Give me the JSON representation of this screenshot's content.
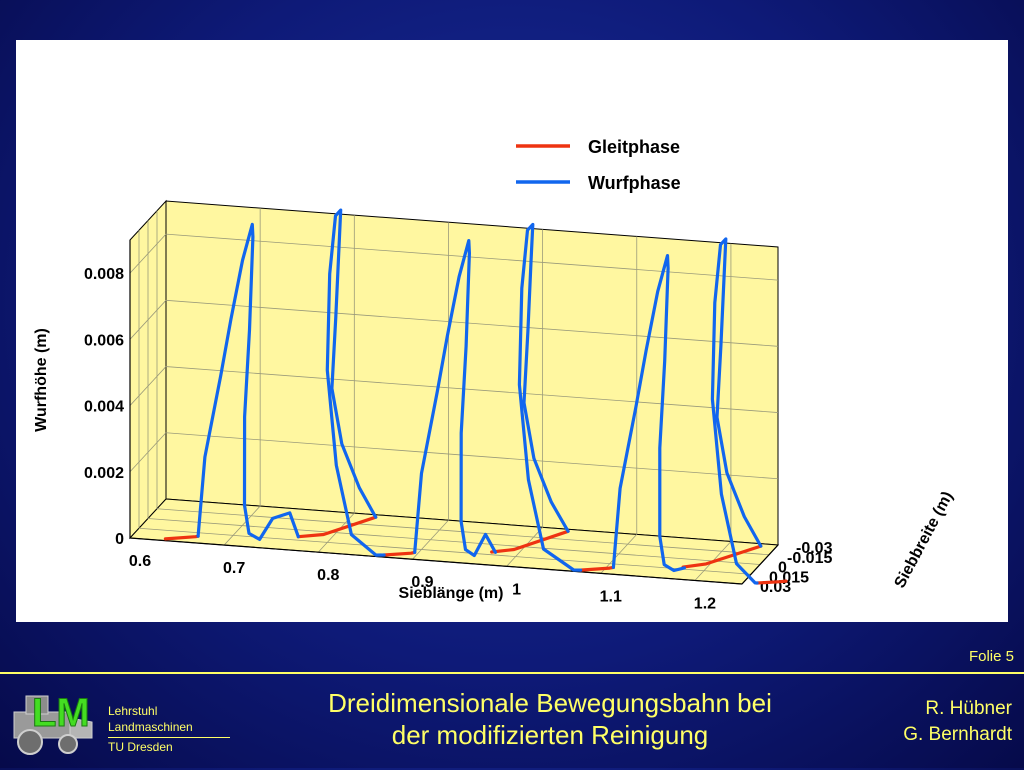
{
  "slide": {
    "number": "Folie 5",
    "title_line1": "Dreidimensionale Bewegungsbahn bei",
    "title_line2": "der modifizierten Reinigung",
    "authors": [
      "R. Hübner",
      "G. Bernhardt"
    ],
    "institution": [
      "Lehrstuhl",
      "Landmaschinen",
      "TU Dresden"
    ],
    "logo_letters": "LM",
    "colors": {
      "background": "#0e1a78",
      "text": "#ffff66",
      "pane": "#fff7a0"
    }
  },
  "chart_data": {
    "type": "line",
    "projection": "3d",
    "xlabel": "Sieblänge (m)",
    "ylabel": "Siebbreite (m)",
    "zlabel": "Wurfhöhe (m)",
    "xlim": [
      0.6,
      1.25
    ],
    "ylim": [
      -0.03,
      0.03
    ],
    "zlim": [
      0,
      0.009
    ],
    "x_ticks": [
      "0.6",
      "0.7",
      "0.8",
      "0.9",
      "1",
      "1.1",
      "1.2"
    ],
    "y_ticks": [
      "-0.03",
      "-0.015",
      "0",
      "0.015",
      "0.03"
    ],
    "z_ticks": [
      "0",
      "0.002",
      "0.004",
      "0.006",
      "0.008"
    ],
    "grid": true,
    "legend_position": "top-right",
    "colors": {
      "Gleitphase": "#ee3311",
      "Wurfphase": "#1166ee"
    },
    "series": [
      {
        "name": "Gleitphase",
        "segments": [
          [
            [
              0.636,
              0.0275,
              0
            ],
            [
              0.664,
              0.021,
              0
            ],
            [
              0.666,
              0.02,
              0
            ]
          ],
          [
            [
              0.766,
              0.01,
              0
            ],
            [
              0.789,
              0.004,
              0
            ],
            [
              0.825,
              -0.0265,
              0
            ]
          ],
          [
            [
              0.868,
              0.027,
              0
            ],
            [
              0.893,
              0.0215,
              0
            ],
            [
              0.896,
              0.02,
              0
            ]
          ],
          [
            [
              0.972,
              0.011,
              0
            ],
            [
              0.992,
              0.005,
              0
            ],
            [
              1.029,
              -0.027,
              0
            ]
          ],
          [
            [
              1.077,
              0.0275,
              0
            ],
            [
              1.104,
              0.0215,
              0
            ],
            [
              1.107,
              0.02,
              0
            ]
          ],
          [
            [
              1.176,
              0.012,
              0
            ],
            [
              1.196,
              0.005,
              0
            ],
            [
              1.234,
              -0.0265,
              0
            ]
          ],
          [
            [
              1.264,
              0.027,
              0
            ],
            [
              1.286,
              0.0225,
              0
            ],
            [
              1.291,
              0.021,
              0
            ]
          ]
        ]
      },
      {
        "name": "Wurfphase",
        "segments": [
          [
            [
              0.666,
              0.02,
              0
            ],
            [
              0.67,
              0.015,
              0.0023
            ],
            [
              0.681,
              0.006,
              0.0046
            ],
            [
              0.688,
              0,
              0.0062
            ],
            [
              0.694,
              -0.01,
              0.0078
            ],
            [
              0.698,
              -0.02,
              0.0087
            ],
            [
              0.698,
              -0.021,
              0.0083
            ],
            [
              0.704,
              -0.006,
              0.0058
            ],
            [
              0.709,
              0.01,
              0.0035
            ],
            [
              0.714,
              0.018,
              0.001
            ],
            [
              0.72,
              0.02,
              0.0002
            ],
            [
              0.73,
              0.018,
              0
            ],
            [
              0.742,
              0.015,
              0.0006
            ],
            [
              0.757,
              0.01,
              0.0007
            ],
            [
              0.766,
              0.01,
              0
            ]
          ],
          [
            [
              0.825,
              -0.0265,
              0
            ],
            [
              0.818,
              -0.01,
              0.0012
            ],
            [
              0.809,
              0.005,
              0.0028
            ],
            [
              0.803,
              0.012,
              0.0046
            ],
            [
              0.802,
              0.004,
              0.0066
            ],
            [
              0.799,
              -0.006,
              0.0085
            ],
            [
              0.797,
              -0.012,
              0.0095
            ],
            [
              0.794,
              -0.008,
              0.0094
            ],
            [
              0.793,
              0,
              0.0078
            ],
            [
              0.8,
              0.015,
              0.0052
            ],
            [
              0.814,
              0.022,
              0.0025
            ],
            [
              0.832,
              0.025,
              0.0005
            ],
            [
              0.86,
              0.028,
              0
            ],
            [
              0.868,
              0.027,
              0
            ]
          ],
          [
            [
              0.896,
              0.02,
              0
            ],
            [
              0.9,
              0.015,
              0.0023
            ],
            [
              0.911,
              0.006,
              0.0046
            ],
            [
              0.918,
              0,
              0.0062
            ],
            [
              0.924,
              -0.01,
              0.0078
            ],
            [
              0.928,
              -0.02,
              0.0087
            ],
            [
              0.928,
              -0.021,
              0.0083
            ],
            [
              0.934,
              -0.006,
              0.0058
            ],
            [
              0.939,
              0.01,
              0.0035
            ],
            [
              0.944,
              0.018,
              0.001
            ],
            [
              0.95,
              0.02,
              0.0002
            ],
            [
              0.958,
              0.018,
              0
            ],
            [
              0.968,
              0.015,
              0.0006
            ],
            [
              0.976,
              0.011,
              0
            ]
          ],
          [
            [
              1.029,
              -0.027,
              0
            ],
            [
              1.022,
              -0.01,
              0.0012
            ],
            [
              1.013,
              0.005,
              0.0028
            ],
            [
              1.007,
              0.012,
              0.0046
            ],
            [
              1.006,
              0.004,
              0.0066
            ],
            [
              1.003,
              -0.006,
              0.0085
            ],
            [
              1.001,
              -0.012,
              0.0095
            ],
            [
              0.998,
              -0.008,
              0.0094
            ],
            [
              0.997,
              0,
              0.0078
            ],
            [
              1.004,
              0.015,
              0.0052
            ],
            [
              1.018,
              0.022,
              0.0025
            ],
            [
              1.036,
              0.025,
              0.0005
            ],
            [
              1.07,
              0.028,
              0
            ],
            [
              1.077,
              0.0275,
              0
            ]
          ],
          [
            [
              1.107,
              0.02,
              0
            ],
            [
              1.111,
              0.015,
              0.0023
            ],
            [
              1.122,
              0.006,
              0.0046
            ],
            [
              1.129,
              0,
              0.0062
            ],
            [
              1.135,
              -0.01,
              0.0078
            ],
            [
              1.139,
              -0.02,
              0.0087
            ],
            [
              1.139,
              -0.021,
              0.0083
            ],
            [
              1.145,
              -0.006,
              0.0058
            ],
            [
              1.15,
              0.01,
              0.0035
            ],
            [
              1.155,
              0.018,
              0.001
            ],
            [
              1.161,
              0.02,
              0.0002
            ],
            [
              1.17,
              0.018,
              0
            ],
            [
              1.178,
              0.013,
              0
            ]
          ],
          [
            [
              1.234,
              -0.0265,
              0
            ],
            [
              1.227,
              -0.01,
              0.0012
            ],
            [
              1.218,
              0.005,
              0.0028
            ],
            [
              1.212,
              0.012,
              0.0046
            ],
            [
              1.211,
              0.004,
              0.0066
            ],
            [
              1.208,
              -0.006,
              0.0085
            ],
            [
              1.206,
              -0.012,
              0.0095
            ],
            [
              1.203,
              -0.008,
              0.0094
            ],
            [
              1.202,
              0,
              0.0078
            ],
            [
              1.209,
              0.015,
              0.0052
            ],
            [
              1.223,
              0.022,
              0.0025
            ],
            [
              1.241,
              0.025,
              0.0005
            ],
            [
              1.262,
              0.027,
              0
            ],
            [
              1.264,
              0.027,
              0
            ]
          ]
        ]
      }
    ]
  }
}
